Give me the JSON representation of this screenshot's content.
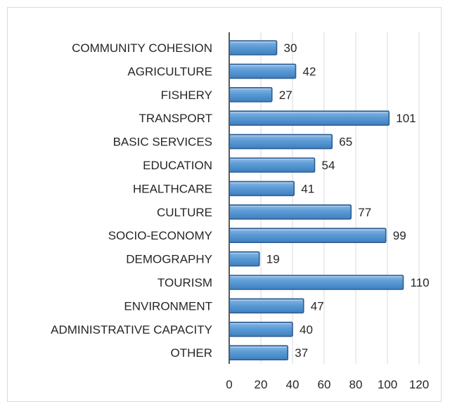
{
  "chart_data": {
    "type": "bar",
    "orientation": "horizontal",
    "categories": [
      "COMMUNITY COHESION",
      "AGRICULTURE",
      "FISHERY",
      "TRANSPORT",
      "BASIC SERVICES",
      "EDUCATION",
      "HEALTHCARE",
      "CULTURE",
      "SOCIO-ECONOMY",
      "DEMOGRAPHY",
      "TOURISM",
      "ENVIRONMENT",
      "ADMINISTRATIVE CAPACITY",
      "OTHER"
    ],
    "values": [
      30,
      42,
      27,
      101,
      65,
      54,
      41,
      77,
      99,
      19,
      110,
      47,
      40,
      37
    ],
    "xticks": [
      "0",
      "20",
      "40",
      "60",
      "80",
      "100",
      "120"
    ],
    "xlim": [
      0,
      120
    ],
    "grid": true,
    "legend": "none",
    "bar_color": "#5b9bd5",
    "bar_edge_color": "#2e5f91"
  }
}
